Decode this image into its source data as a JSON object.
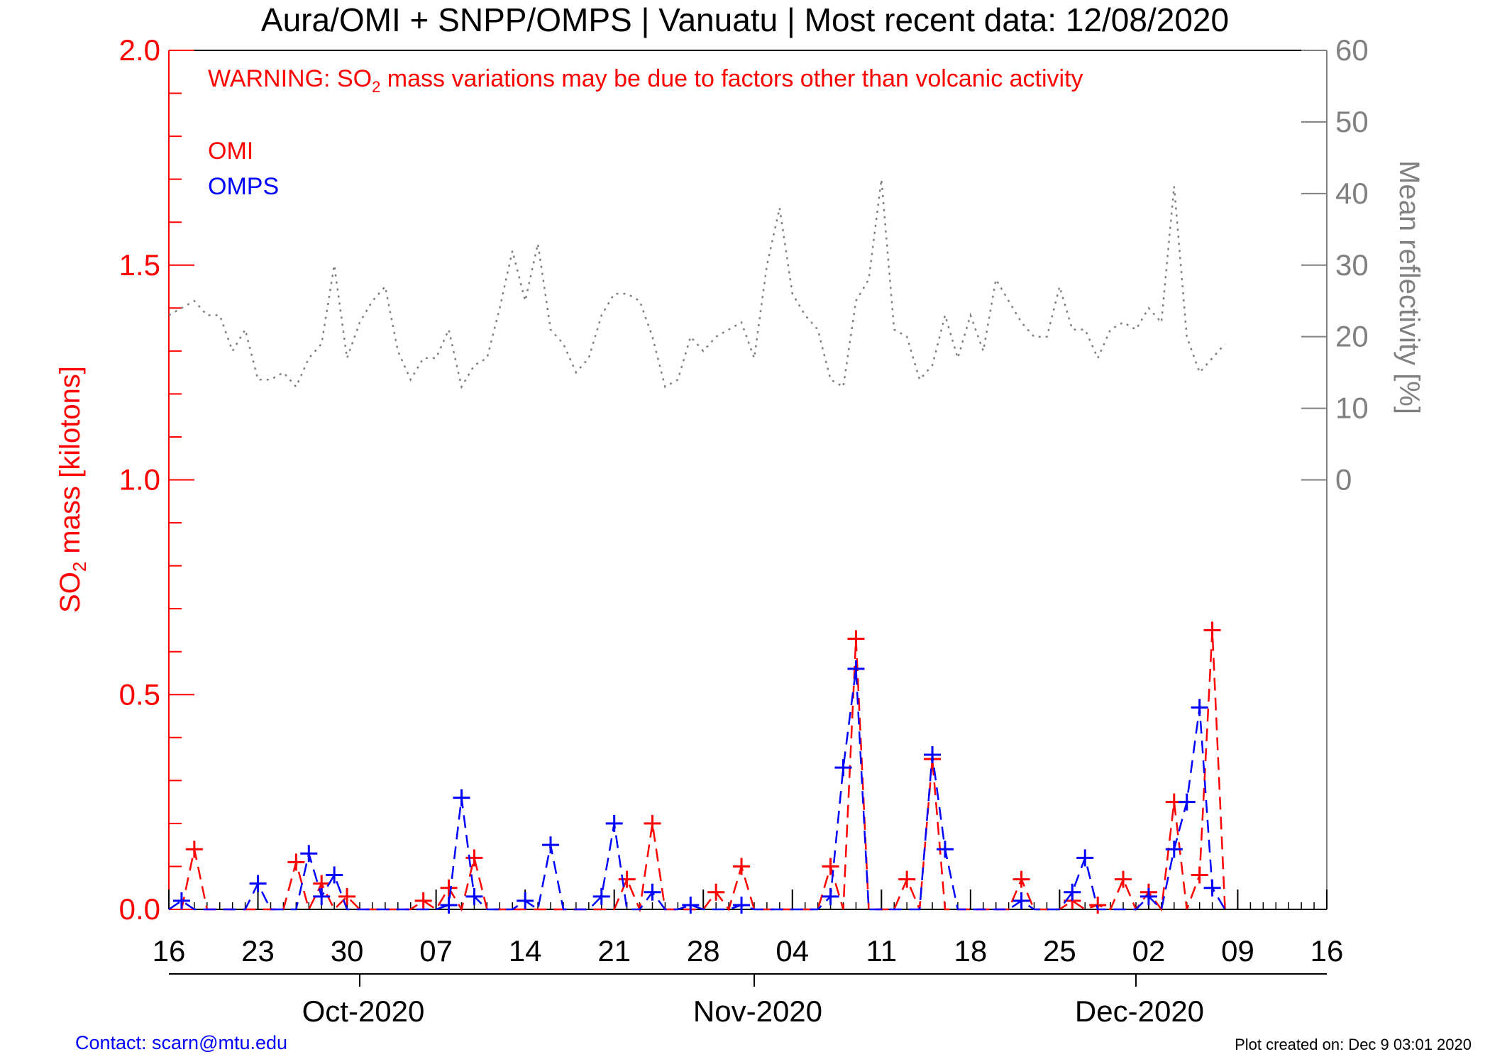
{
  "footer": {
    "contact": "Contact: scarn@mtu.edu",
    "created": "Plot created on: Dec  9 03:01 2020"
  },
  "chart_data": {
    "type": "line",
    "title": "Aura/OMI + SNPP/OMPS | Vanuatu | Most recent data: 12/08/2020",
    "warning": {
      "prefix": "WARNING: SO",
      "sub": "2",
      "suffix": " mass variations may be due to factors other than volcanic activity"
    },
    "ylabel": {
      "prefix": "SO",
      "sub": "2",
      "suffix": " mass [kilotons]"
    },
    "y2label": "Mean reflectivity [%]",
    "xlim": [
      "2020-09-16",
      "2020-12-16"
    ],
    "ylim": [
      0,
      2.0
    ],
    "y2lim": [
      0,
      60
    ],
    "y_ticks": [
      "0.0",
      "0.5",
      "1.0",
      "1.5",
      "2.0"
    ],
    "y2_ticks": [
      "0",
      "10",
      "20",
      "30",
      "40",
      "50",
      "60"
    ],
    "x_ticks": [
      {
        "date": "2020-09-16",
        "label": "16"
      },
      {
        "date": "2020-09-23",
        "label": "23"
      },
      {
        "date": "2020-09-30",
        "label": "30"
      },
      {
        "date": "2020-10-07",
        "label": "07"
      },
      {
        "date": "2020-10-14",
        "label": "14"
      },
      {
        "date": "2020-10-21",
        "label": "21"
      },
      {
        "date": "2020-10-28",
        "label": "28"
      },
      {
        "date": "2020-11-04",
        "label": "04"
      },
      {
        "date": "2020-11-11",
        "label": "11"
      },
      {
        "date": "2020-11-18",
        "label": "18"
      },
      {
        "date": "2020-11-25",
        "label": "25"
      },
      {
        "date": "2020-12-02",
        "label": "02"
      },
      {
        "date": "2020-12-09",
        "label": "09"
      },
      {
        "date": "2020-12-16",
        "label": "16"
      }
    ],
    "month_ticks": [
      "2020-10-01",
      "2020-11-01",
      "2020-12-01"
    ],
    "month_labels": [
      {
        "date": "2020-10-01",
        "label": "Oct-2020"
      },
      {
        "date": "2020-11-01",
        "label": "Nov-2020"
      },
      {
        "date": "2020-12-01",
        "label": "Dec-2020"
      }
    ],
    "legend_position": "top-left",
    "colors": {
      "omi": "#ff0000",
      "omps": "#0000ff",
      "reflectivity": "#808080",
      "axis": "#000000",
      "y2axis": "#808080"
    },
    "series": [
      {
        "name": "OMI",
        "x": [
          "2020-09-17",
          "2020-09-18",
          "2020-09-19",
          "2020-09-20",
          "2020-09-21",
          "2020-09-22",
          "2020-09-23",
          "2020-09-24",
          "2020-09-25",
          "2020-09-26",
          "2020-09-27",
          "2020-09-28",
          "2020-09-29",
          "2020-09-30",
          "2020-10-01",
          "2020-10-02",
          "2020-10-03",
          "2020-10-04",
          "2020-10-05",
          "2020-10-06",
          "2020-10-07",
          "2020-10-08",
          "2020-10-09",
          "2020-10-10",
          "2020-10-11",
          "2020-10-12",
          "2020-10-13",
          "2020-10-14",
          "2020-10-15",
          "2020-10-16",
          "2020-10-17",
          "2020-10-18",
          "2020-10-19",
          "2020-10-20",
          "2020-10-21",
          "2020-10-22",
          "2020-10-23",
          "2020-10-24",
          "2020-10-25",
          "2020-10-26",
          "2020-10-27",
          "2020-10-28",
          "2020-10-29",
          "2020-10-30",
          "2020-10-31",
          "2020-11-01",
          "2020-11-02",
          "2020-11-03",
          "2020-11-04",
          "2020-11-05",
          "2020-11-06",
          "2020-11-07",
          "2020-11-08",
          "2020-11-09",
          "2020-11-10",
          "2020-11-11",
          "2020-11-12",
          "2020-11-13",
          "2020-11-14",
          "2020-11-15",
          "2020-11-16",
          "2020-11-17",
          "2020-11-18",
          "2020-11-19",
          "2020-11-20",
          "2020-11-21",
          "2020-11-22",
          "2020-11-23",
          "2020-11-24",
          "2020-11-25",
          "2020-11-26",
          "2020-11-27",
          "2020-11-28",
          "2020-11-29",
          "2020-11-30",
          "2020-12-01",
          "2020-12-02",
          "2020-12-03",
          "2020-12-04",
          "2020-12-05",
          "2020-12-06",
          "2020-12-07",
          "2020-12-08"
        ],
        "values": [
          0.0,
          0.14,
          0.0,
          0.0,
          0.0,
          0.0,
          0.0,
          0.0,
          0.0,
          0.11,
          0.0,
          0.06,
          0.0,
          0.03,
          0.0,
          0.0,
          0.0,
          0.0,
          0.0,
          0.02,
          0.0,
          0.05,
          0.0,
          0.12,
          0.0,
          0.0,
          0.0,
          0.0,
          0.0,
          0.0,
          0.0,
          0.0,
          0.0,
          0.0,
          0.0,
          0.07,
          0.0,
          0.2,
          0.0,
          0.0,
          0.0,
          0.0,
          0.04,
          0.0,
          0.1,
          0.0,
          0.0,
          0.0,
          0.0,
          0.0,
          0.0,
          0.1,
          0.0,
          0.63,
          0.0,
          0.0,
          0.0,
          0.07,
          0.0,
          0.35,
          0.0,
          0.0,
          0.0,
          0.0,
          0.0,
          0.0,
          0.07,
          0.0,
          0.0,
          0.0,
          0.02,
          0.0,
          0.01,
          0.0,
          0.07,
          0.0,
          0.04,
          0.0,
          0.25,
          0.0,
          0.08,
          0.65,
          0.0
        ]
      },
      {
        "name": "OMPS",
        "x": [
          "2020-09-16",
          "2020-09-17",
          "2020-09-18",
          "2020-09-19",
          "2020-09-20",
          "2020-09-21",
          "2020-09-22",
          "2020-09-23",
          "2020-09-24",
          "2020-09-25",
          "2020-09-26",
          "2020-09-27",
          "2020-09-28",
          "2020-09-29",
          "2020-09-30",
          "2020-10-01",
          "2020-10-02",
          "2020-10-03",
          "2020-10-04",
          "2020-10-05",
          "2020-10-06",
          "2020-10-07",
          "2020-10-08",
          "2020-10-09",
          "2020-10-10",
          "2020-10-11",
          "2020-10-12",
          "2020-10-13",
          "2020-10-14",
          "2020-10-15",
          "2020-10-16",
          "2020-10-17",
          "2020-10-18",
          "2020-10-19",
          "2020-10-20",
          "2020-10-21",
          "2020-10-22",
          "2020-10-23",
          "2020-10-24",
          "2020-10-25",
          "2020-10-26",
          "2020-10-27",
          "2020-10-28",
          "2020-10-29",
          "2020-10-30",
          "2020-10-31",
          "2020-11-01",
          "2020-11-02",
          "2020-11-03",
          "2020-11-04",
          "2020-11-05",
          "2020-11-06",
          "2020-11-07",
          "2020-11-08",
          "2020-11-09",
          "2020-11-10",
          "2020-11-11",
          "2020-11-12",
          "2020-11-13",
          "2020-11-14",
          "2020-11-15",
          "2020-11-16",
          "2020-11-17",
          "2020-11-18",
          "2020-11-19",
          "2020-11-20",
          "2020-11-21",
          "2020-11-22",
          "2020-11-23",
          "2020-11-24",
          "2020-11-25",
          "2020-11-26",
          "2020-11-27",
          "2020-11-28",
          "2020-11-29",
          "2020-11-30",
          "2020-12-01",
          "2020-12-02",
          "2020-12-03",
          "2020-12-04",
          "2020-12-05",
          "2020-12-06",
          "2020-12-07",
          "2020-12-08"
        ],
        "values": [
          0.0,
          0.02,
          0.0,
          0.0,
          0.0,
          0.0,
          0.0,
          0.06,
          0.0,
          0.0,
          0.0,
          0.13,
          0.03,
          0.08,
          0.0,
          0.0,
          0.0,
          0.0,
          0.0,
          0.0,
          0.0,
          0.0,
          0.01,
          0.26,
          0.03,
          0.0,
          0.0,
          0.0,
          0.02,
          0.0,
          0.15,
          0.0,
          0.0,
          0.0,
          0.03,
          0.2,
          0.0,
          0.0,
          0.04,
          0.0,
          0.0,
          0.01,
          0.0,
          0.0,
          0.0,
          0.01,
          0.0,
          0.0,
          0.0,
          0.0,
          0.0,
          0.0,
          0.03,
          0.33,
          0.56,
          0.0,
          0.0,
          0.0,
          0.0,
          0.0,
          0.36,
          0.14,
          0.0,
          0.0,
          0.0,
          0.0,
          0.0,
          0.02,
          0.0,
          0.0,
          0.0,
          0.04,
          0.12,
          0.0,
          0.0,
          0.0,
          0.0,
          0.03,
          0.0,
          0.14,
          0.25,
          0.47,
          0.05,
          0.0
        ]
      },
      {
        "name": "Mean reflectivity",
        "axis": "y2",
        "x": [
          "2020-09-16",
          "2020-09-17",
          "2020-09-18",
          "2020-09-19",
          "2020-09-20",
          "2020-09-21",
          "2020-09-22",
          "2020-09-23",
          "2020-09-24",
          "2020-09-25",
          "2020-09-26",
          "2020-09-27",
          "2020-09-28",
          "2020-09-29",
          "2020-09-30",
          "2020-10-01",
          "2020-10-02",
          "2020-10-03",
          "2020-10-04",
          "2020-10-05",
          "2020-10-06",
          "2020-10-07",
          "2020-10-08",
          "2020-10-09",
          "2020-10-10",
          "2020-10-11",
          "2020-10-12",
          "2020-10-13",
          "2020-10-14",
          "2020-10-15",
          "2020-10-16",
          "2020-10-17",
          "2020-10-18",
          "2020-10-19",
          "2020-10-20",
          "2020-10-21",
          "2020-10-22",
          "2020-10-23",
          "2020-10-24",
          "2020-10-25",
          "2020-10-26",
          "2020-10-27",
          "2020-10-28",
          "2020-10-29",
          "2020-10-30",
          "2020-10-31",
          "2020-11-01",
          "2020-11-02",
          "2020-11-03",
          "2020-11-04",
          "2020-11-05",
          "2020-11-06",
          "2020-11-07",
          "2020-11-08",
          "2020-11-09",
          "2020-11-10",
          "2020-11-11",
          "2020-11-12",
          "2020-11-13",
          "2020-11-14",
          "2020-11-15",
          "2020-11-16",
          "2020-11-17",
          "2020-11-18",
          "2020-11-19",
          "2020-11-20",
          "2020-11-21",
          "2020-11-22",
          "2020-11-23",
          "2020-11-24",
          "2020-11-25",
          "2020-11-26",
          "2020-11-27",
          "2020-11-28",
          "2020-11-29",
          "2020-11-30",
          "2020-12-01",
          "2020-12-02",
          "2020-12-03",
          "2020-12-04",
          "2020-12-05",
          "2020-12-06",
          "2020-12-07",
          "2020-12-08"
        ],
        "values": [
          23,
          24,
          25,
          23,
          23,
          18,
          21,
          14,
          14,
          15,
          13,
          17,
          19,
          30,
          17,
          22,
          25,
          27,
          18,
          14,
          17,
          17,
          21,
          13,
          16,
          17,
          24,
          32,
          25,
          33,
          21,
          19,
          15,
          17,
          23,
          26,
          26,
          25,
          20,
          13,
          14,
          20,
          18,
          20,
          21,
          22,
          17,
          30,
          38,
          26,
          23,
          21,
          14,
          13,
          25,
          28,
          42,
          21,
          20,
          14,
          16,
          23,
          17,
          23,
          18,
          28,
          25,
          22,
          20,
          20,
          27,
          21,
          21,
          17,
          21,
          22,
          21,
          24,
          22,
          41,
          20,
          15,
          17,
          19
        ]
      }
    ]
  }
}
